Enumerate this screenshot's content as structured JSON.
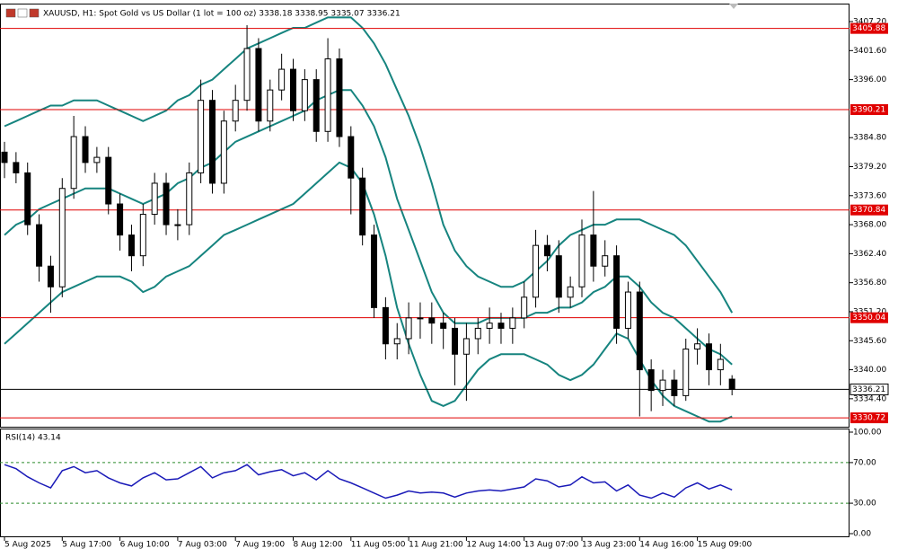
{
  "header": "XAUUSD, H1:  Spot Gold vs US Dollar (1 lot = 100 oz)  3338.18 3338.95 3335.07 3336.21",
  "chart_data": [
    {
      "type": "candlestick",
      "categories": [
        "5 Aug 2025",
        null,
        null,
        null,
        null,
        "5 Aug 17:00",
        null,
        null,
        null,
        null,
        "6 Aug 10:00",
        null,
        null,
        null,
        null,
        "7 Aug 03:00",
        null,
        null,
        null,
        null,
        "7 Aug 19:00",
        null,
        null,
        null,
        null,
        "8 Aug 12:00",
        null,
        null,
        null,
        null,
        "11 Aug 05:00",
        null,
        null,
        null,
        null,
        "11 Aug 21:00",
        null,
        null,
        null,
        null,
        "12 Aug 14:00",
        null,
        null,
        null,
        null,
        "13 Aug 07:00",
        null,
        null,
        null,
        null,
        "13 Aug 23:00",
        null,
        null,
        null,
        null,
        "14 Aug 16:00",
        null,
        null,
        null,
        null,
        "15 Aug 09:00",
        null,
        null,
        null
      ],
      "open": [
        3382,
        3380,
        3378,
        3368,
        3360,
        3356,
        3375,
        3385,
        3380,
        3381,
        3372,
        3366,
        3362,
        3370,
        3376,
        3368,
        3368,
        3378,
        3392,
        3376,
        3388,
        3392,
        3402,
        3388,
        3394,
        3398,
        3390,
        3396,
        3386,
        3400,
        3385,
        3377,
        3366,
        3352,
        3345,
        3346,
        3350,
        3350,
        3349,
        3348,
        3343,
        3346,
        3348,
        3349,
        3348,
        3350,
        3354,
        3364,
        3362,
        3354,
        3356,
        3366,
        3360,
        3362,
        3348,
        3355,
        3340,
        3336,
        3338,
        3335,
        3344,
        3345,
        3340,
        3338.18
      ],
      "high": [
        3384,
        3382,
        3380,
        3370,
        3362,
        3377,
        3389,
        3387,
        3383,
        3383,
        3374,
        3368,
        3372,
        3378,
        3378,
        3371,
        3380,
        3396,
        3394,
        3390,
        3395,
        3406.5,
        3404,
        3396,
        3401,
        3400,
        3398,
        3398,
        3404,
        3402,
        3387,
        3379,
        3368,
        3354,
        3349,
        3353,
        3353,
        3353,
        3351,
        3350,
        3349,
        3350,
        3352,
        3351,
        3352,
        3357,
        3367,
        3366,
        3365,
        3358,
        3369,
        3374.5,
        3365,
        3364,
        3357,
        3357,
        3342,
        3340,
        3340,
        3346,
        3348,
        3347,
        3345,
        3338.95
      ],
      "low": [
        3377,
        3376,
        3366,
        3357,
        3351,
        3354,
        3373,
        3378,
        3378,
        3370,
        3363,
        3359,
        3360,
        3368,
        3366,
        3365,
        3366,
        3376,
        3374,
        3374,
        3386,
        3390,
        3386,
        3386,
        3392,
        3388,
        3388,
        3384,
        3384,
        3383,
        3370,
        3364,
        3350,
        3342,
        3342,
        3343,
        3346,
        3345,
        3344,
        3337,
        3334,
        3343,
        3345,
        3345,
        3345,
        3348,
        3352,
        3359,
        3351,
        3352,
        3354,
        3357,
        3358,
        3345,
        3346,
        3331,
        3332,
        3333,
        3333,
        3334,
        3341,
        3337,
        3337,
        3335.07
      ],
      "close": [
        3380,
        3378,
        3368,
        3360,
        3356,
        3375,
        3385,
        3380,
        3381,
        3372,
        3366,
        3362,
        3370,
        3376,
        3368,
        3368,
        3378,
        3392,
        3376,
        3388,
        3392,
        3402,
        3388,
        3394,
        3398,
        3390,
        3396,
        3386,
        3400,
        3385,
        3377,
        3366,
        3352,
        3345,
        3346,
        3350,
        3350,
        3349,
        3348,
        3343,
        3346,
        3348,
        3349,
        3348,
        3350,
        3354,
        3364,
        3362,
        3354,
        3356,
        3366,
        3360,
        3362,
        3348,
        3355,
        3340,
        3336,
        3338,
        3335,
        3344,
        3345,
        3340,
        3342,
        3336.21
      ],
      "series": [
        {
          "color": "#16847f",
          "values": [
            3387,
            3388,
            3389,
            3390,
            3391,
            3391,
            3392,
            3392,
            3392,
            3391,
            3390,
            3389,
            3388,
            3389,
            3390,
            3392,
            3393,
            3395,
            3396,
            3398,
            3400,
            3402,
            3403,
            3404,
            3405,
            3406,
            3406,
            3407,
            3408,
            3408,
            3408,
            3406,
            3403,
            3399,
            3394,
            3389,
            3383,
            3376,
            3368,
            3363,
            3360,
            3358,
            3357,
            3356,
            3356,
            3357,
            3359,
            3361,
            3364,
            3366,
            3367,
            3368,
            3368,
            3369,
            3369,
            3369,
            3368,
            3367,
            3366,
            3364,
            3361,
            3358,
            3355,
            3351
          ]
        },
        {
          "color": "#16847f",
          "values": [
            3366,
            3368,
            3369,
            3371,
            3372,
            3373,
            3374,
            3375,
            3375,
            3375,
            3374,
            3373,
            3372,
            3373,
            3374,
            3376,
            3377,
            3379,
            3380,
            3382,
            3384,
            3385,
            3386,
            3387,
            3388,
            3389,
            3390,
            3392,
            3393,
            3394,
            3394,
            3391,
            3387,
            3381,
            3373,
            3367,
            3361,
            3355,
            3351,
            3349,
            3349,
            3349,
            3350,
            3350,
            3350,
            3350,
            3351,
            3351,
            3352,
            3352,
            3353,
            3355,
            3356,
            3358,
            3358,
            3356,
            3353,
            3351,
            3350,
            3348,
            3346,
            3344,
            3343,
            3341
          ]
        },
        {
          "color": "#16847f",
          "values": [
            3345,
            3347,
            3349,
            3351,
            3353,
            3355,
            3356,
            3357,
            3358,
            3358,
            3358,
            3357,
            3355,
            3356,
            3358,
            3359,
            3360,
            3362,
            3364,
            3366,
            3367,
            3368,
            3369,
            3370,
            3371,
            3372,
            3374,
            3376,
            3378,
            3380,
            3379,
            3376,
            3370,
            3362,
            3352,
            3345,
            3339,
            3334,
            3333,
            3334,
            3337,
            3340,
            3342,
            3343,
            3343,
            3343,
            3342,
            3341,
            3339,
            3338,
            3339,
            3341,
            3344,
            3347,
            3346,
            3342,
            3338,
            3335,
            3333,
            3332,
            3331,
            3330,
            3330,
            3331
          ]
        }
      ],
      "levels": [
        3405.88,
        3390.21,
        3370.84,
        3350.04,
        3330.72
      ],
      "level_color": "#e00000",
      "last_price": 3336.21,
      "ylim": [
        3329.0,
        3410.5
      ],
      "yticks": [
        {
          "value": 3407.2,
          "label": "3407.20"
        },
        {
          "value": 3401.6,
          "label": "3401.60"
        },
        {
          "value": 3396,
          "label": "3396.00"
        },
        {
          "value": 3384.8,
          "label": "3384.80"
        },
        {
          "value": 3379.2,
          "label": "3379.20"
        },
        {
          "value": 3373.6,
          "label": "3373.60"
        },
        {
          "value": 3368,
          "label": "3368.00"
        },
        {
          "value": 3362.4,
          "label": "3362.40"
        },
        {
          "value": 3356.8,
          "label": "3356.80"
        },
        {
          "value": 3351.2,
          "label": "3351.20"
        },
        {
          "value": 3345.6,
          "label": "3345.60"
        },
        {
          "value": 3340,
          "label": "3340.00"
        },
        {
          "value": 3334.4,
          "label": "3334.40"
        }
      ]
    },
    {
      "type": "line",
      "title": "RSI(14) 43.14",
      "color": "#1a1ab8",
      "values": [
        68,
        64,
        56,
        50,
        45,
        62,
        66,
        60,
        62,
        55,
        50,
        47,
        55,
        60,
        53,
        54,
        60,
        66,
        55,
        60,
        62,
        68,
        58,
        61,
        63,
        57,
        60,
        53,
        62,
        54,
        50,
        45,
        40,
        35,
        38,
        42,
        40,
        41,
        40,
        36,
        40,
        42,
        43,
        42,
        44,
        46,
        54,
        52,
        46,
        48,
        56,
        50,
        51,
        42,
        48,
        38,
        35,
        40,
        36,
        45,
        50,
        44,
        48,
        43.14
      ],
      "ylim": [
        0,
        100
      ],
      "yticks": [
        {
          "value": 100,
          "label": "100.00"
        },
        {
          "value": 70,
          "label": "70.00"
        },
        {
          "value": 30,
          "label": "30.00"
        },
        {
          "value": 0,
          "label": "0.00"
        }
      ],
      "levels": [
        70,
        30
      ],
      "level_color": "#2a8a2a"
    }
  ]
}
